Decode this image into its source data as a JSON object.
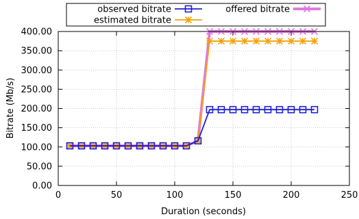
{
  "chart_data": {
    "type": "line",
    "title": "",
    "xlabel": "Duration (seconds)",
    "ylabel": "Bitrate (Mb/s)",
    "xlim": [
      0,
      250
    ],
    "ylim": [
      0,
      400
    ],
    "xticks": [
      0,
      50,
      100,
      150,
      200,
      250
    ],
    "yticks": [
      0,
      50,
      100,
      150,
      200,
      250,
      300,
      350,
      400
    ],
    "xtick_labels": [
      "0",
      "50",
      "100",
      "150",
      "200",
      "250"
    ],
    "ytick_labels": [
      "0.00",
      "50.00",
      "100.00",
      "150.00",
      "200.00",
      "250.00",
      "300.00",
      "350.00",
      "400.00"
    ],
    "grid": true,
    "legend_position": "top",
    "series": [
      {
        "name": "observed bitrate",
        "color": "#1f1fd1",
        "marker": "square",
        "x": [
          10,
          20,
          30,
          40,
          50,
          60,
          70,
          80,
          90,
          100,
          110,
          120,
          130,
          140,
          150,
          160,
          170,
          180,
          190,
          200,
          210,
          220
        ],
        "y": [
          103,
          103,
          103,
          103,
          103,
          103,
          103,
          103,
          103,
          103,
          103,
          116,
          197,
          197,
          197,
          197,
          197,
          197,
          197,
          197,
          197,
          197
        ]
      },
      {
        "name": "estimated bitrate",
        "color": "#f5a10a",
        "marker": "star",
        "x": [
          10,
          20,
          30,
          40,
          50,
          60,
          70,
          80,
          90,
          100,
          110,
          120,
          130,
          140,
          150,
          160,
          170,
          180,
          190,
          200,
          210,
          220
        ],
        "y": [
          103,
          103,
          103,
          103,
          103,
          103,
          103,
          103,
          103,
          103,
          103,
          116,
          375,
          375,
          375,
          375,
          375,
          375,
          375,
          375,
          375,
          375
        ]
      },
      {
        "name": "offered bitrate",
        "color": "#e07ae0",
        "marker": "x",
        "x": [
          10,
          20,
          30,
          40,
          50,
          60,
          70,
          80,
          90,
          100,
          110,
          120,
          130,
          140,
          150,
          160,
          170,
          180,
          190,
          200,
          210,
          220
        ],
        "y": [
          103,
          103,
          103,
          103,
          103,
          103,
          103,
          103,
          103,
          103,
          103,
          116,
          400,
          400,
          400,
          400,
          400,
          400,
          400,
          400,
          400,
          400
        ]
      }
    ]
  }
}
